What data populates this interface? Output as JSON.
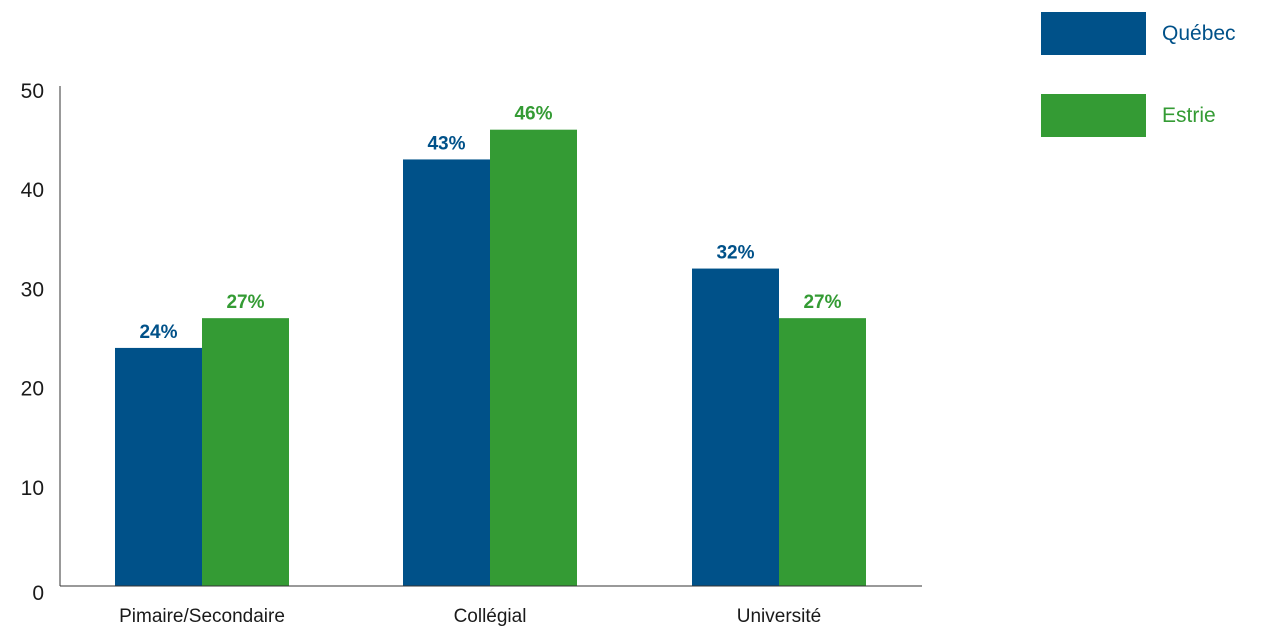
{
  "chart_data": {
    "type": "bar",
    "categories": [
      "Pimaire/Secondaire",
      "Collégial",
      "Université"
    ],
    "series": [
      {
        "name": "Québec",
        "color": "#005189",
        "values": [
          24,
          43,
          32
        ],
        "labels": [
          "24%",
          "43%",
          "32%"
        ]
      },
      {
        "name": "Estrie",
        "color": "#349b34",
        "values": [
          27,
          46,
          27
        ],
        "labels": [
          "27%",
          "46%",
          "27%"
        ]
      }
    ],
    "yticks": [
      0,
      10,
      20,
      30,
      40,
      50
    ],
    "ylim": [
      0,
      50
    ],
    "grid": false,
    "legend_position": "top-right",
    "title": "",
    "xlabel": "",
    "ylabel": ""
  }
}
